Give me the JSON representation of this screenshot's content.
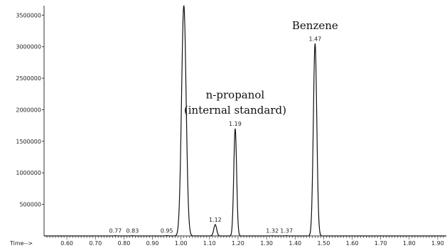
{
  "chart_data": {
    "type": "line",
    "title": "",
    "xlabel": "Time-->",
    "ylabel": "",
    "xlim": [
      0.52,
      1.93
    ],
    "ylim": [
      0,
      3650000
    ],
    "x_ticks": [
      0.6,
      0.7,
      0.8,
      0.9,
      1.0,
      1.1,
      1.2,
      1.3,
      1.4,
      1.5,
      1.6,
      1.7,
      1.8,
      1.9
    ],
    "x_tick_labels": [
      "0.60",
      "0.70",
      "0.80",
      "0.90",
      "1.00",
      "1.10",
      "1.20",
      "1.30",
      "1.40",
      "1.50",
      "1.60",
      "1.70",
      "1.80",
      "1.90"
    ],
    "y_ticks": [
      500000,
      1000000,
      1500000,
      2000000,
      2500000,
      3000000,
      3500000
    ],
    "y_tick_labels": [
      "500000",
      "1000000",
      "1500000",
      "2000000",
      "2500000",
      "3000000",
      "3500000"
    ],
    "peaks": [
      {
        "rt": 0.77,
        "label": "0.77",
        "height": 3000,
        "width": 0.004
      },
      {
        "rt": 0.83,
        "label": "0.83",
        "height": 3000,
        "width": 0.004
      },
      {
        "rt": 0.95,
        "label": "0.95",
        "height": 5000,
        "width": 0.004
      },
      {
        "rt": 1.01,
        "label": "",
        "height": 3650000,
        "width": 0.008
      },
      {
        "rt": 1.12,
        "label": "1.12",
        "height": 180000,
        "width": 0.005
      },
      {
        "rt": 1.19,
        "label": "1.19",
        "height": 1700000,
        "width": 0.005
      },
      {
        "rt": 1.32,
        "label": "1.32",
        "height": 3000,
        "width": 0.004
      },
      {
        "rt": 1.37,
        "label": "1.37",
        "height": 3000,
        "width": 0.004
      },
      {
        "rt": 1.47,
        "label": "1.47",
        "height": 3050000,
        "width": 0.006
      }
    ],
    "annotations": [
      {
        "text": "Benzene",
        "x": 1.47,
        "y": 3280000
      },
      {
        "text": "n-propanol",
        "x": 1.19,
        "y": 2180000
      },
      {
        "text": "(internal standard)",
        "x": 1.19,
        "y": 1940000
      }
    ],
    "grid": false,
    "legend": "none"
  }
}
